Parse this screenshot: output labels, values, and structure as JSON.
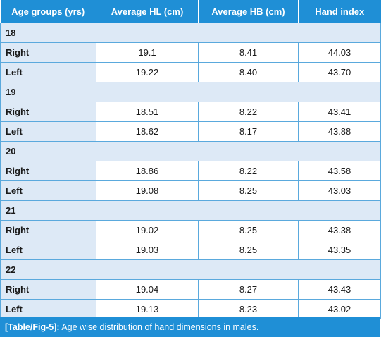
{
  "table": {
    "headers": [
      "Age groups (yrs)",
      "Average HL (cm)",
      "Average HB (cm)",
      "Hand index"
    ],
    "groups": [
      {
        "age": "18",
        "rows": [
          {
            "side": "Right",
            "hl": "19.1",
            "hb": "8.41",
            "index": "44.03"
          },
          {
            "side": "Left",
            "hl": "19.22",
            "hb": "8.40",
            "index": "43.70"
          }
        ]
      },
      {
        "age": "19",
        "rows": [
          {
            "side": "Right",
            "hl": "18.51",
            "hb": "8.22",
            "index": "43.41"
          },
          {
            "side": "Left",
            "hl": "18.62",
            "hb": "8.17",
            "index": "43.88"
          }
        ]
      },
      {
        "age": "20",
        "rows": [
          {
            "side": "Right",
            "hl": "18.86",
            "hb": "8.22",
            "index": "43.58"
          },
          {
            "side": "Left",
            "hl": "19.08",
            "hb": "8.25",
            "index": "43.03"
          }
        ]
      },
      {
        "age": "21",
        "rows": [
          {
            "side": "Right",
            "hl": "19.02",
            "hb": "8.25",
            "index": "43.38"
          },
          {
            "side": "Left",
            "hl": "19.03",
            "hb": "8.25",
            "index": "43.35"
          }
        ]
      },
      {
        "age": "22",
        "rows": [
          {
            "side": "Right",
            "hl": "19.04",
            "hb": "8.27",
            "index": "43.43"
          },
          {
            "side": "Left",
            "hl": "19.13",
            "hb": "8.23",
            "index": "43.02"
          }
        ]
      }
    ]
  },
  "caption": {
    "ref": "[Table/Fig-5]:",
    "text": " Age wise distribution of hand dimensions in males."
  },
  "colors": {
    "header_bg": "#1f8fd6",
    "label_bg": "#dde9f6",
    "border": "#5aa9dd"
  }
}
